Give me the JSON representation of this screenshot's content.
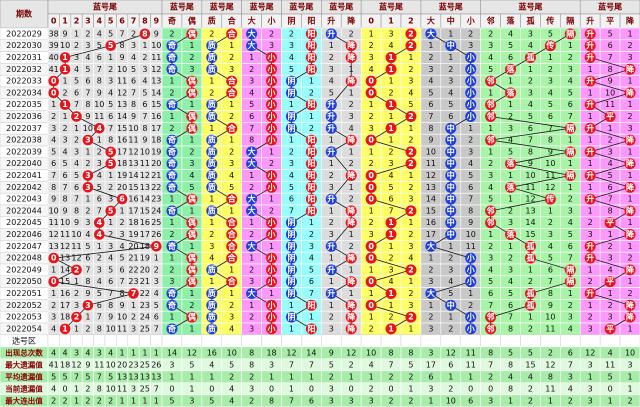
{
  "header": {
    "issue_label": "期数",
    "select_label": "选号区"
  },
  "groups": [
    {
      "title": "蓝号尾",
      "columns": [
        "0",
        "1",
        "2",
        "3",
        "4",
        "5",
        "6",
        "7",
        "8",
        "9"
      ],
      "bg": "#e2e2e2",
      "hit_colors": [
        "#e8141b",
        "#e8141b",
        "#e8141b",
        "#e8141b",
        "#e8141b",
        "#e8141b",
        "#e8141b",
        "#e8141b",
        "#e8141b",
        "#e8141b"
      ]
    },
    {
      "title": "蓝号尾",
      "columns": [
        "奇",
        "偶"
      ],
      "bg": "#8ef0a8",
      "hit_colors": [
        "#1e3fd8",
        "#e8141b"
      ]
    },
    {
      "title": "蓝号尾",
      "columns": [
        "质",
        "合"
      ],
      "bg": "#ffff66",
      "hit_colors": [
        "#1e3fd8",
        "#e8141b"
      ]
    },
    {
      "title": "蓝号尾",
      "columns": [
        "大",
        "小"
      ],
      "bg": "#ff99ff",
      "hit_colors": [
        "#1e3fd8",
        "#e8141b"
      ]
    },
    {
      "title": "蓝号尾",
      "columns": [
        "阴",
        "阳"
      ],
      "bg": "#99ffff",
      "hit_colors": [
        "#1e3fd8",
        "#e8141b"
      ]
    },
    {
      "title": "蓝号尾",
      "columns": [
        "升",
        "降"
      ],
      "bg": "#dcdcdc",
      "hit_colors": [
        "#1e3fd8",
        "#e8141b"
      ]
    },
    {
      "title": "蓝号尾",
      "columns": [
        "0",
        "1",
        "2"
      ],
      "bg": "#ffff66",
      "hit_colors": [
        "#e8141b",
        "#e8141b",
        "#e8141b"
      ]
    },
    {
      "title": "蓝号尾",
      "columns": [
        "大",
        "中",
        "小"
      ],
      "bg": "#c8c8c8",
      "hit_colors": [
        "#1e3fd8",
        "#1e3fd8",
        "#1e3fd8"
      ]
    },
    {
      "title": "蓝号尾",
      "columns": [
        "邻",
        "落",
        "孤",
        "传",
        "隔"
      ],
      "bg": "#a8f5a8",
      "hit_colors": [
        "#e8141b",
        "#e8141b",
        "#e8141b",
        "#e8141b",
        "#e8141b"
      ]
    },
    {
      "title": "蓝号尾",
      "columns": [
        "升",
        "平",
        "降"
      ],
      "bg": "#ff99ff",
      "hit_colors": [
        "#e8141b",
        "#e8141b",
        "#e8141b"
      ]
    }
  ],
  "rows": [
    {
      "issue": "2022029",
      "cells": [
        38,
        9,
        1,
        2,
        4,
        5,
        7,
        2,
        "8",
        9,
        2,
        "偶",
        2,
        "合",
        "大",
        2,
        2,
        "阳",
        "升",
        2,
        1,
        3,
        "2",
        "大",
        1,
        2,
        2,
        4,
        3,
        5,
        "隔",
        "升",
        5,
        1
      ]
    },
    {
      "issue": "2022030",
      "cells": [
        39,
        10,
        2,
        3,
        5,
        "5",
        8,
        3,
        1,
        10,
        "奇",
        1,
        "质",
        1,
        "大",
        3,
        3,
        "阳",
        1,
        "降",
        2,
        4,
        "2",
        1,
        "中",
        3,
        3,
        5,
        4,
        "传",
        1,
        "升",
        6,
        2
      ]
    },
    {
      "issue": "2022031",
      "cells": [
        40,
        "1",
        3,
        4,
        6,
        1,
        9,
        4,
        2,
        11,
        "奇",
        2,
        "质",
        2,
        1,
        "小",
        4,
        "阳",
        2,
        "降",
        3,
        "1",
        1,
        2,
        1,
        "小",
        4,
        6,
        "孤",
        1,
        2,
        "升",
        7,
        3
      ]
    },
    {
      "issue": "2022032",
      "cells": [
        41,
        "1",
        4,
        5,
        7,
        2,
        10,
        5,
        3,
        12,
        "奇",
        3,
        "质",
        3,
        2,
        "小",
        5,
        "阳",
        3,
        1,
        4,
        "1",
        2,
        3,
        2,
        "小",
        5,
        "落",
        1,
        2,
        3,
        1,
        8,
        "降"
      ]
    },
    {
      "issue": "2022033",
      "cells": [
        "0",
        1,
        5,
        6,
        8,
        3,
        11,
        6,
        4,
        13,
        1,
        "偶",
        1,
        "合",
        3,
        "小",
        "阴",
        1,
        4,
        "降",
        "0",
        1,
        3,
        4,
        3,
        "小",
        "邻",
        1,
        2,
        3,
        4,
        "升",
        9,
        1
      ]
    },
    {
      "issue": "2022034",
      "cells": [
        "0",
        2,
        6,
        7,
        9,
        4,
        12,
        7,
        5,
        14,
        2,
        "偶",
        2,
        "合",
        4,
        "小",
        "阴",
        2,
        5,
        1,
        "0",
        2,
        4,
        5,
        4,
        "小",
        1,
        "落",
        3,
        4,
        5,
        1,
        10,
        "降"
      ]
    },
    {
      "issue": "2022035",
      "cells": [
        1,
        "1",
        7,
        8,
        10,
        5,
        13,
        8,
        6,
        15,
        "奇",
        1,
        "质",
        1,
        5,
        "小",
        1,
        "阳",
        "升",
        2,
        1,
        "1",
        5,
        6,
        5,
        "小",
        "邻",
        1,
        4,
        5,
        6,
        "升",
        11,
        1
      ]
    },
    {
      "issue": "2022036",
      "cells": [
        2,
        1,
        "2",
        9,
        11,
        6,
        14,
        9,
        7,
        16,
        1,
        "偶",
        "质",
        2,
        6,
        "小",
        "阴",
        1,
        "升",
        3,
        2,
        1,
        "2",
        7,
        6,
        "小",
        "邻",
        2,
        5,
        6,
        7,
        1,
        "平",
        2
      ]
    },
    {
      "issue": "2022037",
      "cells": [
        3,
        2,
        1,
        10,
        "4",
        7,
        15,
        10,
        8,
        17,
        2,
        "偶",
        1,
        "合",
        7,
        "小",
        "阴",
        2,
        "升",
        4,
        3,
        "1",
        1,
        8,
        "中",
        1,
        1,
        3,
        6,
        7,
        "隔",
        "升",
        1,
        3
      ]
    },
    {
      "issue": "2022038",
      "cells": [
        4,
        3,
        2,
        "3",
        1,
        8,
        16,
        11,
        9,
        18,
        "奇",
        1,
        "质",
        1,
        8,
        "小",
        1,
        "阳",
        1,
        "降",
        "0",
        1,
        2,
        9,
        "中",
        2,
        "邻",
        4,
        7,
        8,
        1,
        1,
        2,
        "降"
      ]
    },
    {
      "issue": "2022039",
      "cells": [
        5,
        4,
        3,
        1,
        2,
        "5",
        17,
        12,
        10,
        19,
        "奇",
        2,
        "质",
        2,
        "大",
        1,
        2,
        "阳",
        "升",
        1,
        1,
        2,
        "2",
        10,
        "中",
        3,
        1,
        5,
        8,
        9,
        "隔",
        "升",
        3,
        1
      ]
    },
    {
      "issue": "2022040",
      "cells": [
        6,
        5,
        4,
        2,
        3,
        "5",
        18,
        13,
        11,
        20,
        "奇",
        3,
        "质",
        3,
        "大",
        2,
        3,
        "阳",
        1,
        2,
        2,
        3,
        "2",
        11,
        "中",
        4,
        2,
        "落",
        9,
        10,
        1,
        1,
        4,
        "降"
      ]
    },
    {
      "issue": "2022041",
      "cells": [
        7,
        6,
        5,
        "3",
        4,
        1,
        19,
        14,
        12,
        21,
        "奇",
        4,
        "质",
        4,
        1,
        "小",
        4,
        "阳",
        2,
        "降",
        "0",
        4,
        1,
        12,
        "中",
        5,
        3,
        1,
        10,
        11,
        "隔",
        "升",
        5,
        1
      ]
    },
    {
      "issue": "2022042",
      "cells": [
        8,
        7,
        6,
        "3",
        5,
        2,
        20,
        15,
        13,
        22,
        "奇",
        5,
        "质",
        5,
        2,
        "小",
        5,
        "阳",
        3,
        1,
        "0",
        5,
        2,
        13,
        "中",
        6,
        4,
        "落",
        11,
        12,
        1,
        1,
        6,
        "降"
      ]
    },
    {
      "issue": "2022043",
      "cells": [
        9,
        8,
        7,
        1,
        6,
        3,
        "6",
        16,
        14,
        23,
        1,
        "偶",
        1,
        "合",
        "大",
        1,
        6,
        "阳",
        "升",
        2,
        "0",
        6,
        3,
        14,
        "中",
        7,
        5,
        1,
        12,
        "传",
        2,
        "升",
        7,
        1
      ]
    },
    {
      "issue": "2022044",
      "cells": [
        10,
        9,
        8,
        2,
        7,
        "5",
        1,
        17,
        15,
        24,
        "奇",
        1,
        "质",
        1,
        "大",
        2,
        7,
        "阳",
        1,
        "降",
        1,
        7,
        "2",
        15,
        "中",
        8,
        "邻",
        2,
        13,
        1,
        3,
        1,
        8,
        "降"
      ]
    },
    {
      "issue": "2022045",
      "cells": [
        11,
        10,
        9,
        3,
        "4",
        1,
        2,
        18,
        16,
        25,
        1,
        "偶",
        1,
        "合",
        1,
        "小",
        "阴",
        1,
        2,
        "降",
        2,
        "1",
        1,
        16,
        "中",
        9,
        "邻",
        3,
        14,
        2,
        4,
        2,
        "平",
        1
      ]
    },
    {
      "issue": "2022046",
      "cells": [
        12,
        11,
        10,
        4,
        "4",
        2,
        3,
        19,
        17,
        26,
        2,
        "偶",
        2,
        "合",
        2,
        "小",
        "阴",
        2,
        3,
        1,
        3,
        "1",
        2,
        17,
        "中",
        10,
        1,
        "落",
        15,
        3,
        5,
        3,
        1,
        "降"
      ]
    },
    {
      "issue": "2022047",
      "cells": [
        13,
        12,
        11,
        5,
        1,
        3,
        4,
        20,
        18,
        "9",
        "奇",
        1,
        3,
        "合",
        "大",
        1,
        "阴",
        3,
        "升",
        2,
        "0",
        1,
        3,
        "大",
        1,
        11,
        2,
        1,
        "孤",
        4,
        6,
        "升",
        2,
        1
      ]
    },
    {
      "issue": "2022048",
      "cells": [
        "0",
        13,
        12,
        6,
        2,
        4,
        5,
        21,
        19,
        1,
        1,
        "偶",
        4,
        "合",
        1,
        "小",
        "阴",
        4,
        1,
        "降",
        "0",
        2,
        4,
        1,
        2,
        "小",
        3,
        2,
        "孤",
        5,
        7,
        "升",
        3,
        2
      ]
    },
    {
      "issue": "2022049",
      "cells": [
        1,
        14,
        "2",
        7,
        3,
        5,
        6,
        22,
        20,
        2,
        2,
        "偶",
        "质",
        1,
        2,
        "小",
        "阴",
        5,
        "升",
        1,
        1,
        3,
        "2",
        2,
        3,
        "小",
        4,
        3,
        1,
        6,
        "隔",
        1,
        4,
        "降"
      ]
    },
    {
      "issue": "2022050",
      "cells": [
        "0",
        15,
        1,
        8,
        4,
        6,
        7,
        23,
        21,
        3,
        3,
        "偶",
        1,
        "合",
        3,
        "小",
        "阴",
        6,
        1,
        "降",
        "0",
        4,
        1,
        3,
        4,
        "小",
        5,
        4,
        2,
        7,
        "隔",
        2,
        "平",
        1
      ]
    },
    {
      "issue": "2022051",
      "cells": [
        1,
        16,
        2,
        9,
        5,
        7,
        8,
        "7",
        22,
        4,
        "奇",
        1,
        "质",
        1,
        "大",
        1,
        "阴",
        7,
        "升",
        1,
        1,
        "1",
        2,
        "大",
        5,
        1,
        6,
        5,
        "孤",
        8,
        1,
        "升",
        1,
        2
      ]
    },
    {
      "issue": "2022052",
      "cells": [
        2,
        17,
        3,
        "3",
        6,
        8,
        9,
        1,
        23,
        5,
        "奇",
        2,
        "质",
        2,
        1,
        "小",
        1,
        "阳",
        1,
        "降",
        "0",
        1,
        3,
        1,
        "中",
        2,
        7,
        6,
        "孤",
        9,
        2,
        1,
        2,
        "降"
      ]
    },
    {
      "issue": "2022053",
      "cells": [
        3,
        18,
        "2",
        1,
        7,
        9,
        10,
        2,
        24,
        6,
        1,
        "偶",
        "质",
        3,
        2,
        "小",
        "阴",
        1,
        2,
        "降",
        1,
        2,
        "2",
        2,
        1,
        "小",
        "邻",
        7,
        1,
        10,
        3,
        2,
        3,
        "降"
      ]
    },
    {
      "issue": "2022054",
      "cells": [
        4,
        "1",
        1,
        2,
        8,
        10,
        11,
        3,
        25,
        7,
        "奇",
        1,
        "质",
        4,
        3,
        "小",
        1,
        "阳",
        3,
        "降",
        2,
        "1",
        1,
        3,
        2,
        "小",
        "邻",
        8,
        2,
        11,
        4,
        3,
        "平",
        1
      ]
    }
  ],
  "stats": [
    {
      "label": "出现总次数",
      "values": [
        4,
        4,
        3,
        4,
        3,
        4,
        1,
        1,
        1,
        1,
        14,
        12,
        16,
        10,
        8,
        18,
        12,
        14,
        9,
        12,
        10,
        8,
        8,
        3,
        12,
        11,
        8,
        5,
        5,
        2,
        6,
        12,
        4,
        10
      ]
    },
    {
      "label": "最大遗漏值",
      "values": [
        41,
        18,
        12,
        9,
        11,
        10,
        20,
        23,
        25,
        26,
        3,
        5,
        4,
        5,
        8,
        3,
        7,
        7,
        5,
        2,
        4,
        7,
        5,
        17,
        6,
        11,
        7,
        8,
        15,
        12,
        7,
        3,
        11,
        3
      ]
    },
    {
      "label": "平均遗漏值",
      "values": [
        5,
        5,
        7,
        5,
        7,
        5,
        13,
        13,
        13,
        13,
        1,
        1,
        1,
        2,
        2,
        1,
        1,
        1,
        2,
        1,
        1,
        2,
        2,
        6,
        1,
        1,
        2,
        4,
        4,
        8,
        3,
        1,
        5,
        1
      ]
    },
    {
      "label": "当前遗漏值",
      "values": [
        4,
        0,
        1,
        2,
        8,
        10,
        11,
        3,
        25,
        7,
        0,
        1,
        0,
        4,
        3,
        0,
        1,
        0,
        3,
        0,
        2,
        0,
        1,
        3,
        2,
        0,
        0,
        8,
        2,
        11,
        4,
        3,
        0,
        1
      ]
    },
    {
      "label": "最大连出值",
      "values": [
        2,
        2,
        1,
        2,
        2,
        2,
        1,
        1,
        1,
        1,
        5,
        3,
        5,
        4,
        2,
        8,
        7,
        6,
        3,
        3,
        3,
        2,
        2,
        1,
        10,
        6,
        3,
        1,
        2,
        1,
        2,
        3,
        1,
        2
      ]
    }
  ]
}
